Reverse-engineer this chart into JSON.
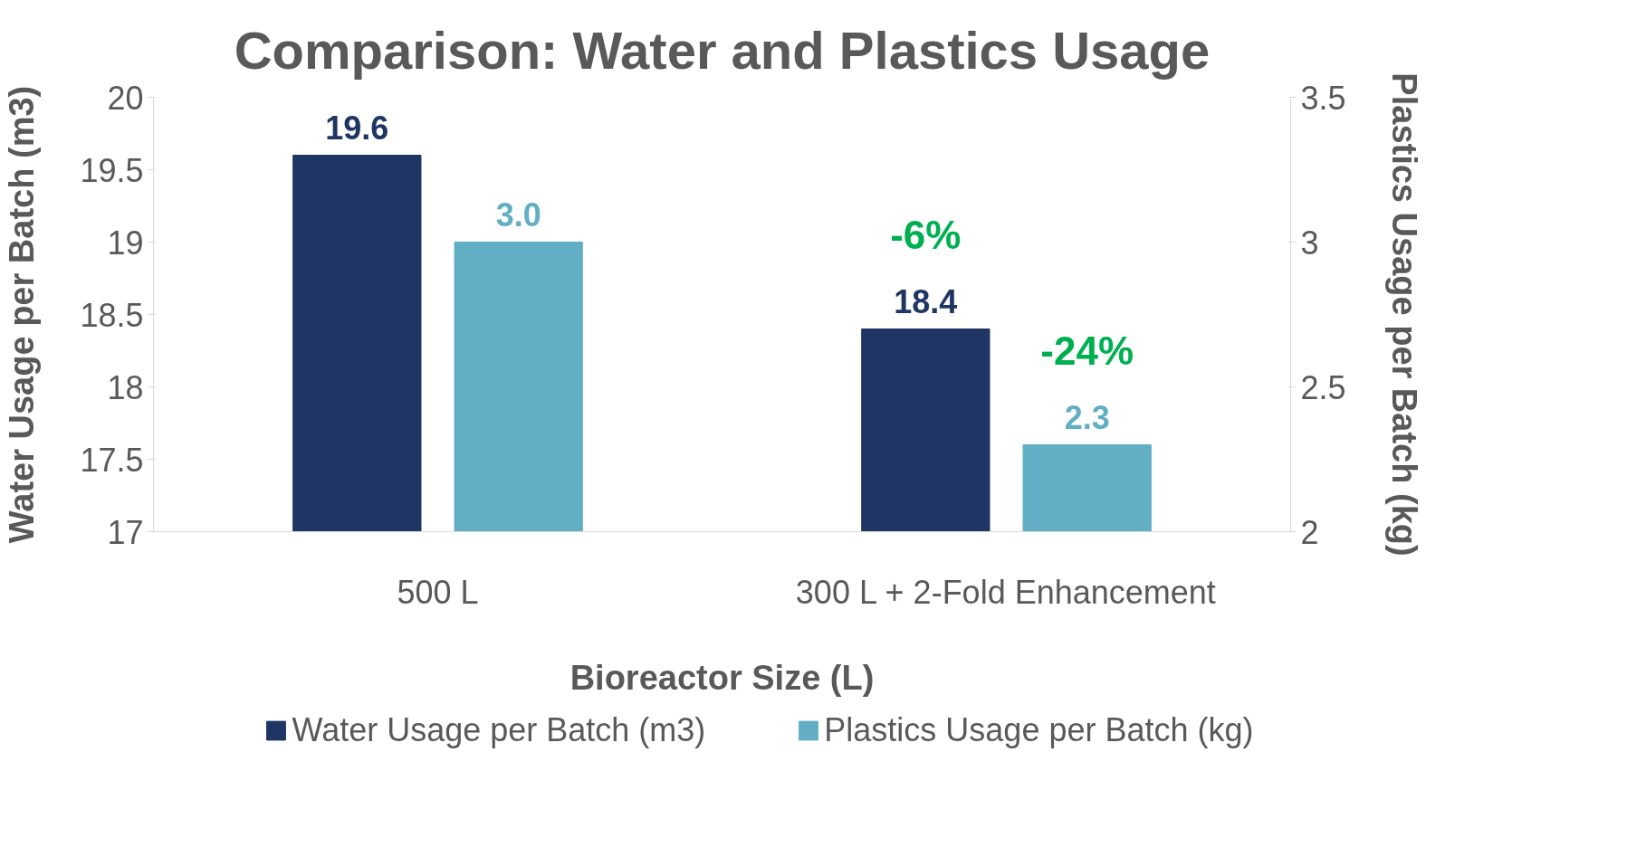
{
  "chart_data": {
    "type": "bar",
    "title": "Comparison: Water and Plastics Usage",
    "xlabel": "Bioreactor Size (L)",
    "ylabel": "Water Usage per Batch (m3)",
    "y2label": "Plastics Usage per Batch (kg)",
    "categories": [
      "500 L",
      "300 L + 2-Fold Enhancement"
    ],
    "series": [
      {
        "name": "Water Usage per Batch (m3)",
        "color": "#1f3564",
        "values": [
          19.6,
          18.4
        ],
        "value_labels": [
          "19.6",
          "18.4"
        ]
      },
      {
        "name": "Plastics Usage per Batch (kg)",
        "color": "#62aec5",
        "values": [
          3.0,
          2.3
        ],
        "value_labels": [
          "3.0",
          "2.3"
        ],
        "axis": "y2"
      }
    ],
    "ylim": [
      17,
      20
    ],
    "yticks": [
      17,
      17.5,
      18,
      18.5,
      19,
      19.5,
      20
    ],
    "y2lim": [
      2,
      3.5
    ],
    "y2ticks": [
      2,
      2.5,
      3,
      3.5
    ],
    "annotations": [
      "-6%",
      "-24%"
    ],
    "legend": "bottom",
    "grid": false
  }
}
